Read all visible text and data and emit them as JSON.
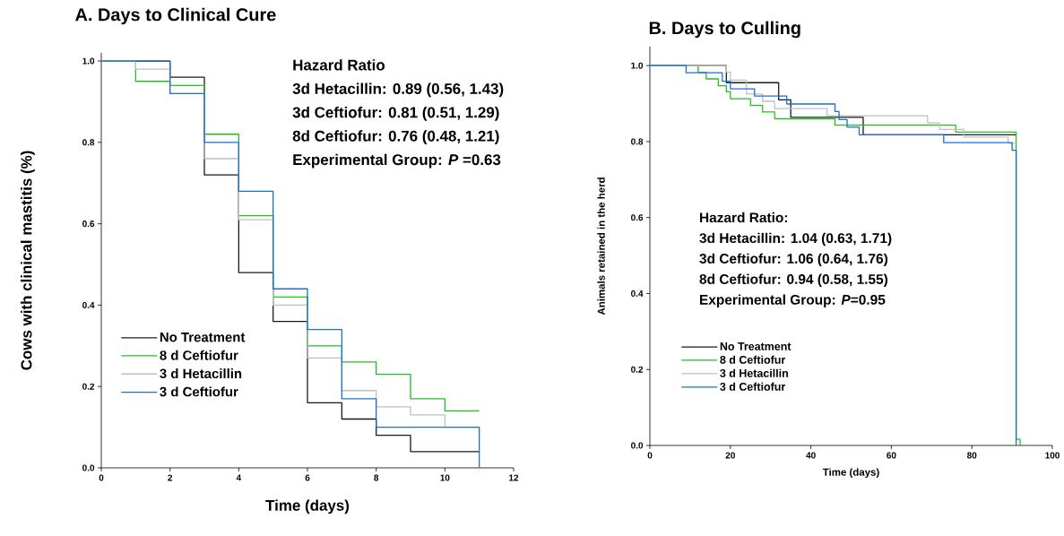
{
  "chart_data": [
    {
      "type": "step",
      "title": "A. Days to Clinical Cure",
      "xlabel": "Time (days)",
      "ylabel": "Cows with clinical mastitis (%)",
      "annotations": [
        "Hazard Ratio",
        "3d Hetacillin: 0.89 (0.56, 1.43)",
        "3d Ceftiofur: 0.81 (0.51, 1.29)",
        "8d Ceftiofur: 0.76 (0.48, 1.21)",
        "Experimental Group: *P* =0.63"
      ],
      "xlim": [
        0,
        12
      ],
      "ylim": [
        0,
        1.02
      ],
      "xticks": [
        0,
        2,
        4,
        6,
        8,
        10,
        12
      ],
      "yticks": [
        {
          "value": 0,
          "label": "0.0"
        },
        {
          "value": 0.2,
          "label": "0.2"
        },
        {
          "value": 0.4,
          "label": "0.4"
        },
        {
          "value": 0.6,
          "label": "0.6"
        },
        {
          "value": 0.8,
          "label": "0.8"
        },
        {
          "value": 1,
          "label": "1.0"
        }
      ],
      "legend": "bottom left",
      "series": [
        {
          "name": "No Treatment",
          "color": "#1a1a1a",
          "x": [
            0,
            2,
            3,
            4,
            5,
            6,
            7,
            8,
            9,
            11
          ],
          "values": [
            1.0,
            0.96,
            0.72,
            0.48,
            0.36,
            0.16,
            0.12,
            0.08,
            0.04,
            0.04
          ]
        },
        {
          "name": "8 d Ceftiofur",
          "color": "#22c022",
          "x": [
            0,
            1,
            2,
            3,
            4,
            5,
            6,
            7,
            8,
            9,
            10,
            11
          ],
          "values": [
            1.0,
            0.95,
            0.94,
            0.82,
            0.62,
            0.42,
            0.3,
            0.26,
            0.23,
            0.17,
            0.14,
            0.14
          ]
        },
        {
          "name": "3 d Hetacillin",
          "color": "#c0c0c0",
          "x": [
            0,
            1,
            2,
            3,
            4,
            5,
            6,
            7,
            8,
            9,
            10,
            11
          ],
          "values": [
            1.0,
            0.98,
            0.92,
            0.76,
            0.61,
            0.4,
            0.27,
            0.19,
            0.15,
            0.13,
            0.1,
            0.1
          ]
        },
        {
          "name": "3 d Ceftiofur",
          "color": "#1f6fcf",
          "x": [
            0,
            2,
            3,
            4,
            5,
            6,
            7,
            8,
            11
          ],
          "values": [
            1.0,
            0.92,
            0.8,
            0.68,
            0.44,
            0.34,
            0.17,
            0.1,
            0.0
          ]
        }
      ]
    },
    {
      "type": "step",
      "title": "B. Days to Culling",
      "xlabel": "Time (days)",
      "ylabel": "Animals retained in the herd",
      "annotations": [
        "Hazard Ratio:",
        "3d Hetacillin: 1.04 (0.63, 1.71)",
        "3d Ceftiofur: 1.06 (0.64, 1.76)",
        "8d Ceftiofur: 0.94 (0.58, 1.55)",
        "Experimental Group: *P*=0.95"
      ],
      "xlim": [
        0,
        100
      ],
      "ylim": [
        0,
        1.05
      ],
      "xticks": [
        0,
        20,
        40,
        60,
        80,
        100
      ],
      "yticks": [
        {
          "value": 0,
          "label": "0.0"
        },
        {
          "value": 0.2,
          "label": "0.2"
        },
        {
          "value": 0.4,
          "label": "0.4"
        },
        {
          "value": 0.6,
          "label": "0.6"
        },
        {
          "value": 0.8,
          "label": "0.8"
        },
        {
          "value": 1,
          "label": "1.0"
        }
      ],
      "legend": "bottom left",
      "series": [
        {
          "name": "No Treatment",
          "color": "#1a1a1a",
          "x": [
            0,
            19,
            32,
            35,
            53,
            91
          ],
          "values": [
            1.0,
            0.955,
            0.91,
            0.864,
            0.818,
            0.818
          ]
        },
        {
          "name": "8 d Ceftiofur",
          "color": "#22c022",
          "x": [
            0,
            12,
            14,
            17,
            19,
            20,
            25,
            28,
            31,
            46,
            76,
            91,
            92
          ],
          "values": [
            1.0,
            0.982,
            0.965,
            0.947,
            0.931,
            0.913,
            0.895,
            0.878,
            0.86,
            0.843,
            0.825,
            0.016,
            0.0
          ]
        },
        {
          "name": "3 d Hetacillin",
          "color": "#c0c0c0",
          "x": [
            0,
            19,
            20,
            24,
            28,
            31,
            44,
            69,
            72,
            78,
            89,
            91
          ],
          "values": [
            1.0,
            0.983,
            0.962,
            0.925,
            0.906,
            0.887,
            0.868,
            0.849,
            0.832,
            0.812,
            0.796,
            0.796
          ]
        },
        {
          "name": "3 d Ceftiofur",
          "color": "#1f6fcf",
          "x": [
            0,
            9,
            18,
            20,
            26,
            34,
            46,
            47,
            49,
            52,
            73,
            90,
            91
          ],
          "values": [
            1.0,
            0.981,
            0.959,
            0.939,
            0.92,
            0.899,
            0.879,
            0.858,
            0.838,
            0.818,
            0.797,
            0.777,
            0.0
          ]
        }
      ]
    }
  ]
}
